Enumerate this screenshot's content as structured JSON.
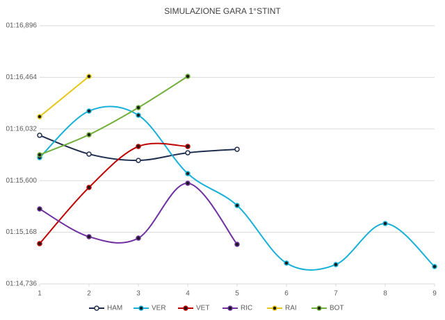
{
  "chart_data": {
    "type": "line",
    "title": "SIMULAZIONE GARA 1°STINT",
    "x": [
      1,
      2,
      3,
      4,
      5,
      6,
      7,
      8,
      9
    ],
    "xlim": [
      1,
      9
    ],
    "xticks": [
      1,
      2,
      3,
      4,
      5,
      6,
      7,
      8,
      9
    ],
    "ylim": [
      74.736,
      76.896
    ],
    "yticks": [
      {
        "value": 74.736,
        "label": "01:14,736"
      },
      {
        "value": 75.168,
        "label": "01:15,168"
      },
      {
        "value": 75.6,
        "label": "01:15,600"
      },
      {
        "value": 76.032,
        "label": "01:16,032"
      },
      {
        "value": 76.464,
        "label": "01:16,464"
      },
      {
        "value": 76.896,
        "label": "01:16,896"
      }
    ],
    "grid": true,
    "smooth": true,
    "legend": "bottom",
    "series": [
      {
        "name": "HAM",
        "color": "#1f2d4f",
        "marker_fill": "#ffffff",
        "values": [
          75.979,
          75.822,
          75.769,
          75.833,
          75.862,
          null,
          null,
          null,
          null
        ]
      },
      {
        "name": "VER",
        "color": "#17b0d8",
        "values": [
          75.793,
          76.182,
          76.147,
          75.659,
          75.392,
          74.91,
          74.898,
          75.241,
          74.881
        ]
      },
      {
        "name": "VET",
        "color": "#c00000",
        "values": [
          75.073,
          75.543,
          75.886,
          75.886,
          null,
          null,
          null,
          null,
          null
        ]
      },
      {
        "name": "RIC",
        "color": "#7030a0",
        "values": [
          75.363,
          75.131,
          75.119,
          75.578,
          75.067,
          null,
          null,
          null,
          null
        ]
      },
      {
        "name": "RAI",
        "color": "#e6c619",
        "values": [
          76.135,
          76.472,
          null,
          null,
          null,
          null,
          null,
          null,
          null
        ]
      },
      {
        "name": "BOT",
        "color": "#70b03a",
        "values": [
          75.816,
          75.984,
          76.211,
          76.472,
          null,
          null,
          null,
          null,
          null
        ]
      }
    ]
  }
}
